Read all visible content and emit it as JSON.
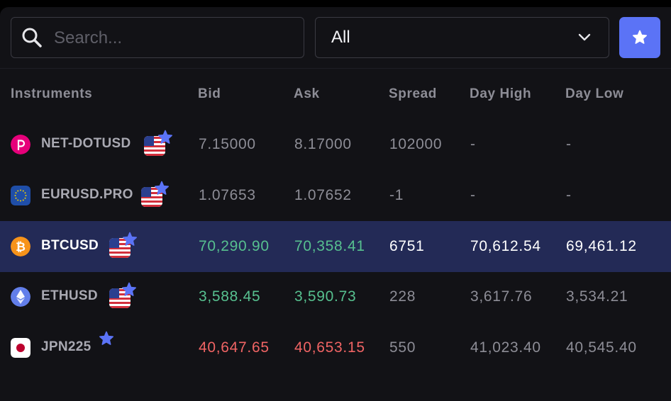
{
  "search": {
    "placeholder": "Search..."
  },
  "filter": {
    "selected": "All"
  },
  "table": {
    "headers": {
      "instruments": "Instruments",
      "bid": "Bid",
      "ask": "Ask",
      "spread": "Spread",
      "day_high": "Day High",
      "day_low": "Day Low"
    },
    "rows": [
      {
        "name": "NET-DOTUSD",
        "icon": "polkadot-icon",
        "icon_color": "#e6007a",
        "flag": "us-flag-icon",
        "favorite": true,
        "bid": "7.15000",
        "ask": "8.17000",
        "spread": "102000",
        "day_high": "-",
        "day_low": "-",
        "trend": "neutral"
      },
      {
        "name": "EURUSD.PRO",
        "icon": "eu-flag-icon",
        "icon_color": "#1f4ea8",
        "flag": "us-flag-icon",
        "favorite": true,
        "bid": "1.07653",
        "ask": "1.07652",
        "spread": "-1",
        "day_high": "-",
        "day_low": "-",
        "trend": "neutral"
      },
      {
        "name": "BTCUSD",
        "icon": "bitcoin-icon",
        "icon_color": "#f7931a",
        "flag": "us-flag-icon",
        "favorite": true,
        "selected": true,
        "bid": "70,290.90",
        "ask": "70,358.41",
        "spread": "6751",
        "day_high": "70,612.54",
        "day_low": "69,461.12",
        "trend": "up"
      },
      {
        "name": "ETHUSD",
        "icon": "ethereum-icon",
        "icon_color": "#627eea",
        "flag": "us-flag-icon",
        "favorite": true,
        "bid": "3,588.45",
        "ask": "3,590.73",
        "spread": "228",
        "day_high": "3,617.76",
        "day_low": "3,534.21",
        "trend": "up"
      },
      {
        "name": "JPN225",
        "icon": "japan-flag-icon",
        "icon_color": "#bc002d",
        "flag": "",
        "favorite": true,
        "bid": "40,647.65",
        "ask": "40,653.15",
        "spread": "550",
        "day_high": "41,023.40",
        "day_low": "40,545.40",
        "trend": "down"
      }
    ]
  },
  "colors": {
    "accent": "#5b73f6",
    "up": "#57c08f",
    "down": "#f06464",
    "selected_row": "#232a56"
  }
}
